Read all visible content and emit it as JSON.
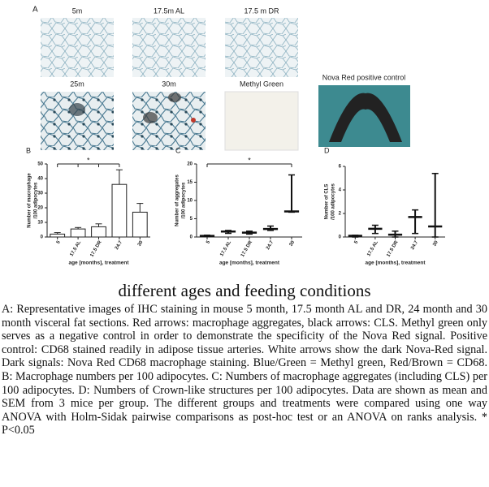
{
  "figure": {
    "label": "A",
    "images": [
      "5m",
      "17.5m AL",
      "17.5 m DR",
      "25m",
      "30m",
      "Methyl Green",
      "Nova Red positive control"
    ]
  },
  "chart_data": [
    {
      "type": "bar",
      "label": "B",
      "ylabel": [
        "Number of macrophage",
        "/100 adipocytes"
      ],
      "xlabel": "age [months], treatment",
      "categories": [
        "5",
        "17.5 AL",
        "17.5 DR",
        "24.7",
        "30"
      ],
      "values": [
        2,
        5.5,
        7,
        36,
        17
      ],
      "errors": [
        1,
        1,
        2,
        10,
        6
      ],
      "color": "#ffffff",
      "ylim": [
        0,
        50
      ],
      "yticks": [
        0,
        10,
        20,
        30,
        40,
        50
      ],
      "annotation": "*"
    },
    {
      "type": "range",
      "label": "C",
      "ylabel": [
        "Number of aggregates",
        "/100 adipocytes"
      ],
      "xlabel": "age [months], treatment",
      "categories": [
        "5",
        "17.5 AL",
        "17.5 DR",
        "24.7",
        "30"
      ],
      "values": [
        0.3,
        1.5,
        1.2,
        2.2,
        7
      ],
      "low": [
        0.1,
        1,
        0.8,
        1.8,
        6.8
      ],
      "high": [
        0.5,
        1.8,
        1.6,
        3,
        17
      ],
      "color": "#111111",
      "ylim": [
        0,
        20
      ],
      "yticks": [
        0,
        5,
        10,
        15,
        20
      ],
      "annotation": "*"
    },
    {
      "type": "range",
      "label": "D",
      "ylabel": [
        "Number of CLS",
        "/100 adipocytes"
      ],
      "xlabel": "age [months], treatment",
      "categories": [
        "5",
        "17.5 AL",
        "17.5 DR",
        "24.7",
        "30"
      ],
      "values": [
        0.1,
        0.7,
        0.2,
        1.7,
        0.9
      ],
      "low": [
        0,
        0.3,
        0,
        0.3,
        0
      ],
      "high": [
        0.15,
        1,
        0.5,
        2.3,
        5.4
      ],
      "color": "#111111",
      "ylim": [
        0,
        6
      ],
      "yticks": [
        0,
        2,
        4,
        6
      ]
    }
  ],
  "caption": {
    "heading": "different ages and feeding conditions",
    "text": "A: Representative images of IHC staining in mouse 5 month, 17.5 month AL and DR, 24 month and 30 month visceral fat sections. Red arrows: macrophage aggregates, black arrows: CLS. Methyl green only serves as a negative control in order to demonstrate the specificity of the Nova Red signal. Positive control: CD68 stained readily in adipose tissue arteries. White arrows show the dark Nova-Red signal. Dark signals:  Nova Red CD68 macrophage staining. Blue/Green = Methyl green, Red/Brown = CD68. B: Macrophage numbers per 100 adipocytes. C: Numbers of macrophage aggregates (including CLS) per 100 adipocytes. D: Numbers of Crown-like structures per 100 adipocytes. Data are shown as mean and SEM from 3 mice per group. The different groups and treatments were compared using one way ANOVA with Holm-Sidak pairwise comparisons as post-hoc test or an ANOVA on ranks analysis. * P<0.05"
  }
}
